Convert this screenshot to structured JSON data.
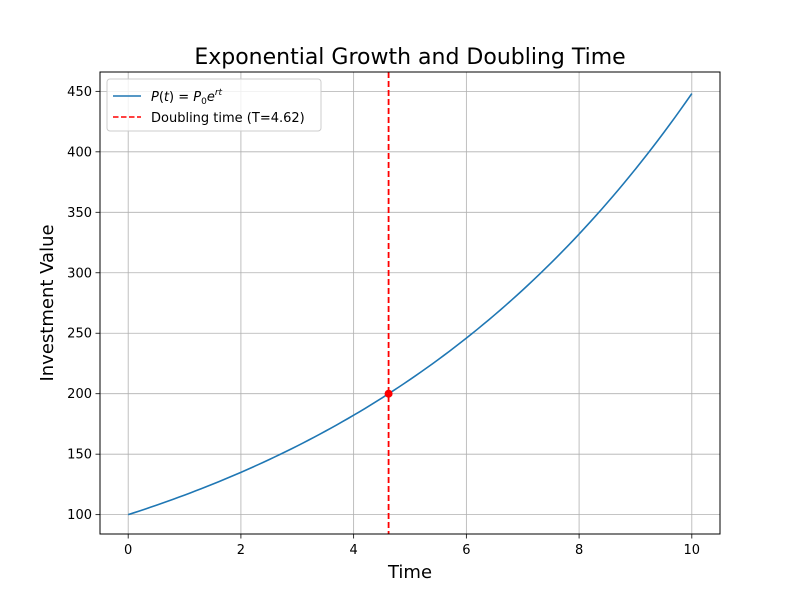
{
  "chart_data": {
    "type": "line",
    "title": "Exponential Growth and Doubling Time",
    "xlabel": "Time",
    "ylabel": "Investment Value",
    "xlim": [
      -0.5,
      10.5
    ],
    "ylim": [
      84,
      466
    ],
    "xticks": [
      0,
      2,
      4,
      6,
      8,
      10
    ],
    "yticks": [
      100,
      150,
      200,
      250,
      300,
      350,
      400,
      450
    ],
    "grid": true,
    "legend_position": "top-left",
    "series": [
      {
        "name": "P(t) = P0e^rt",
        "legend_parts": {
          "lhs": "P",
          "arg": "t",
          "eq": " = P",
          "sub": "0",
          "e": "e",
          "exp": "rt"
        },
        "color": "#1f77b4",
        "style": "solid",
        "P0": 100,
        "r": 0.15,
        "x_start": 0,
        "x_end": 10,
        "x": [
          0,
          1,
          2,
          3,
          4,
          5,
          6,
          7,
          8,
          9,
          10
        ],
        "y": [
          100,
          116.18,
          134.99,
          156.83,
          182.21,
          211.7,
          245.96,
          285.77,
          332.01,
          385.74,
          448.17
        ]
      },
      {
        "name": "Doubling time (T=4.62)",
        "color": "#ff0000",
        "style": "dashed",
        "x_value": 4.62
      }
    ],
    "annotations": [
      {
        "type": "point",
        "x": 4.62,
        "y": 200,
        "color": "#ff0000"
      }
    ]
  }
}
